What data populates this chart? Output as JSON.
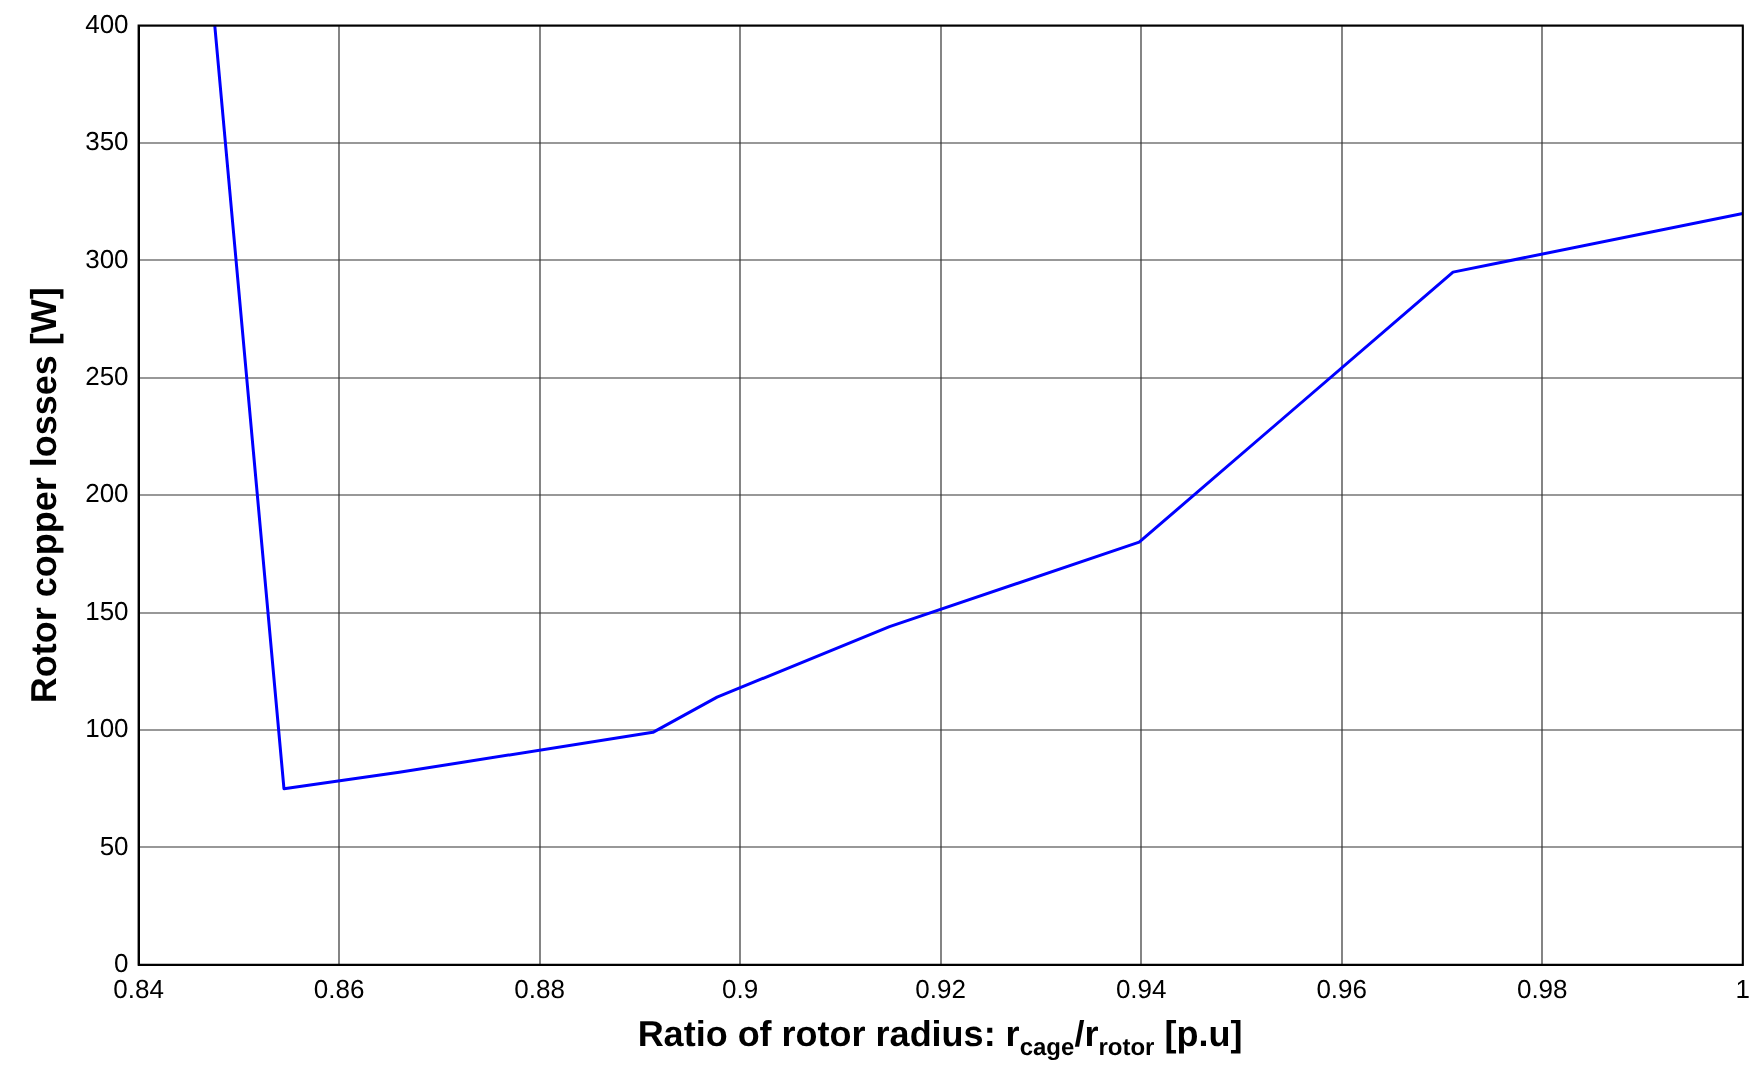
{
  "chart_data": {
    "type": "line",
    "xlabel": "Ratio of rotor radius: r$_{cage}$/r$_{rotor}$ [p.u]",
    "ylabel": "Rotor copper losses [W]",
    "x": [
      0.8476,
      0.8545,
      0.866,
      0.8913,
      0.8977,
      0.9149,
      0.9398,
      0.9711,
      1.0
    ],
    "series": [
      {
        "color": "#0000ff",
        "values": [
          400,
          75,
          82,
          99,
          114,
          144,
          180,
          295,
          320
        ]
      }
    ],
    "xlim": [
      0.84,
      1.0
    ],
    "xticks": [
      0.84,
      0.86,
      0.88,
      0.9,
      0.92,
      0.94,
      0.96,
      0.98,
      1
    ],
    "ylim": [
      0,
      400
    ],
    "yticks": [
      0,
      50,
      100,
      150,
      200,
      250,
      300,
      350,
      400
    ],
    "grid": true,
    "legend": false,
    "marker": "none",
    "line_style": "solid"
  }
}
